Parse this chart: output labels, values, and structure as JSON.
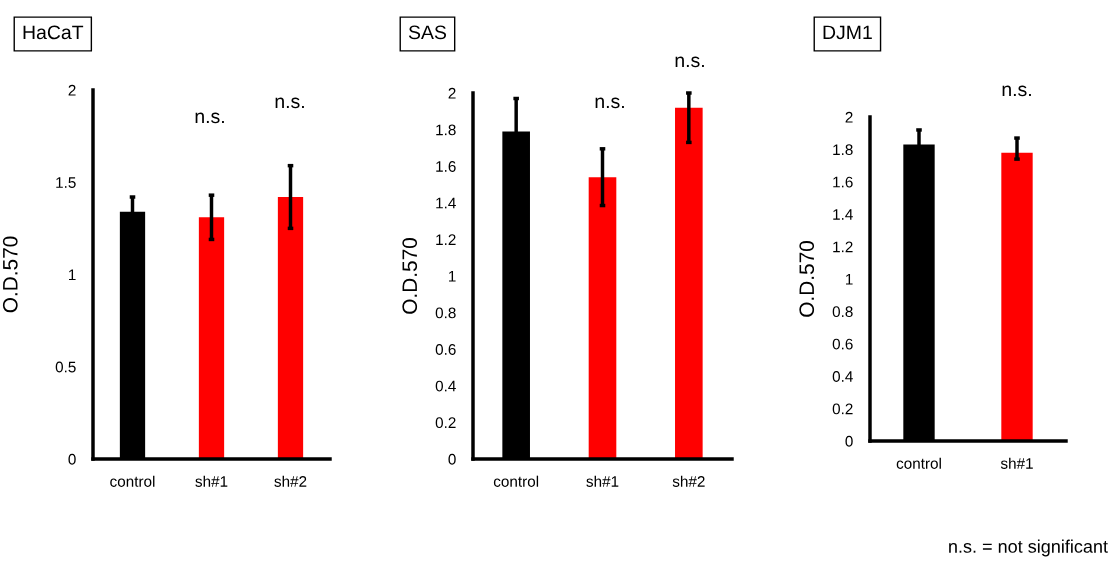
{
  "chart_data": [
    {
      "type": "bar",
      "title": "HaCaT",
      "ylabel": "O.D.570",
      "categories": [
        "control",
        "sh#1",
        "sh#2"
      ],
      "values": [
        1.34,
        1.31,
        1.42
      ],
      "colors": [
        "#000000",
        "#ff0000",
        "#ff0000"
      ],
      "errors": [
        0.08,
        0.12,
        0.17
      ],
      "ylim": [
        0,
        2
      ],
      "yticks": [
        0,
        0.5,
        1,
        1.5,
        2
      ],
      "grid": false,
      "annotations": [
        "n.s.",
        "n.s."
      ]
    },
    {
      "type": "bar",
      "title": "SAS",
      "ylabel": "O.D.570",
      "categories": [
        "control",
        "sh#1",
        "sh#2"
      ],
      "values": [
        1.79,
        1.54,
        1.92
      ],
      "colors": [
        "#000000",
        "#ff0000",
        "#ff0000"
      ],
      "errors": [
        0.18,
        0.155,
        [
          1.73,
          2.0
        ]
      ],
      "ylim": [
        0,
        2
      ],
      "yticks": [
        0,
        0.2,
        0.4,
        0.6,
        0.8,
        1,
        1.2,
        1.4,
        1.6,
        1.8,
        2
      ],
      "grid": false,
      "annotations": [
        "n.s.",
        "n.s."
      ]
    },
    {
      "type": "bar",
      "title": "DJM1",
      "ylabel": "O.D.570",
      "categories": [
        "control",
        "sh#1"
      ],
      "values": [
        1.83,
        1.78
      ],
      "colors": [
        "#000000",
        "#ff0000"
      ],
      "errors": [
        0.09,
        [
          1.74,
          1.87
        ]
      ],
      "ylim": [
        0,
        2
      ],
      "yticks": [
        0,
        0.2,
        0.4,
        0.6,
        0.8,
        1,
        1.2,
        1.4,
        1.6,
        1.8,
        2
      ],
      "grid": false,
      "annotations": [
        "n.s.",
        "n.s. = not significant"
      ]
    }
  ]
}
